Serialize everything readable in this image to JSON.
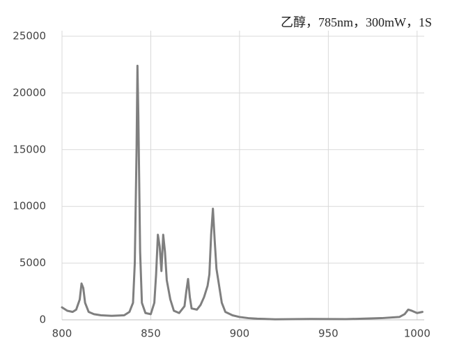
{
  "chart_data": {
    "type": "line",
    "title": "乙醇，785nm，300mW，1S",
    "x": [
      800,
      803,
      806,
      808,
      810,
      811,
      812,
      813,
      815,
      818,
      822,
      828,
      835,
      838,
      840,
      841,
      842,
      842.5,
      843,
      844,
      845,
      847,
      850,
      852,
      853,
      854,
      855,
      856,
      857,
      858,
      859,
      861,
      863,
      866,
      869,
      870,
      871,
      872,
      873,
      876,
      878,
      880,
      882,
      883,
      884,
      885,
      886,
      887,
      888,
      890,
      892,
      896,
      900,
      905,
      910,
      920,
      940,
      960,
      980,
      990,
      993,
      995,
      997,
      1000,
      1003
    ],
    "values": [
      1100,
      800,
      700,
      900,
      1800,
      3200,
      2800,
      1500,
      700,
      500,
      400,
      350,
      400,
      700,
      1500,
      5000,
      15000,
      22400,
      18000,
      6000,
      1500,
      600,
      500,
      1500,
      4000,
      7500,
      6500,
      4300,
      7500,
      6000,
      3500,
      1800,
      800,
      600,
      1200,
      2500,
      3600,
      2000,
      1000,
      900,
      1300,
      2000,
      3000,
      4000,
      7500,
      9800,
      7000,
      4500,
      3500,
      1500,
      700,
      400,
      250,
      150,
      100,
      50,
      80,
      60,
      150,
      250,
      500,
      900,
      800,
      600,
      700
    ],
    "color": "#7f7f7f",
    "xlim": [
      800,
      1004
    ],
    "xticks": [
      800,
      850,
      900,
      950,
      1000
    ],
    "ylim": [
      0,
      25000
    ],
    "yticks": [
      0,
      5000,
      10000,
      15000,
      20000,
      25000
    ],
    "grid": true
  }
}
